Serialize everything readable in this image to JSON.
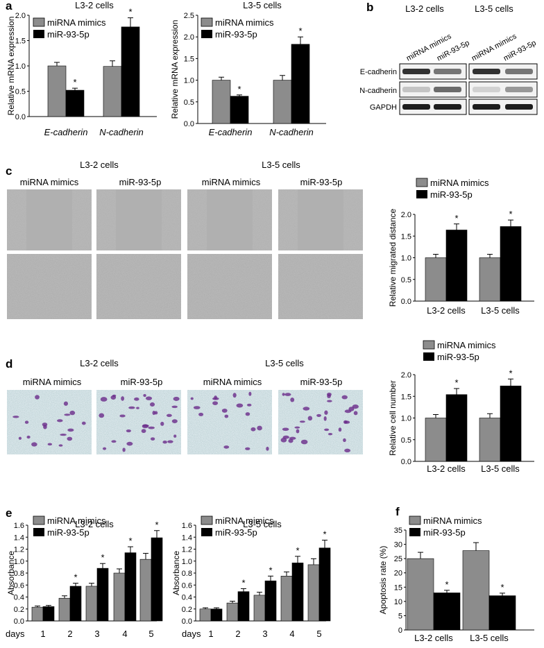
{
  "colors": {
    "mimic": "#8c8c8c",
    "mir": "#000000",
    "migration_bg": "#b8b8b8",
    "invasion_bg": "#d9e6ea",
    "stain": "#6a2a8a"
  },
  "legend": {
    "mimic": "miRNA mimics",
    "mir": "miR-93-5p"
  },
  "panel_a": {
    "label": "a"
  },
  "panel_b": {
    "label": "b",
    "groups": [
      "L3-2 cells",
      "L3-5 cells"
    ],
    "lanes": [
      "miRNA mimics",
      "miR-93-5p",
      "miRNA mimics",
      "miR-93-5p"
    ],
    "rows": [
      "E-cadherin",
      "N-cadherin",
      "GAPDH"
    ]
  },
  "panel_c": {
    "label": "c",
    "groups": [
      "L3-2 cells",
      "L3-5 cells"
    ],
    "columns": [
      "miRNA mimics",
      "miR-93-5p",
      "miRNA mimics",
      "miR-93-5p"
    ]
  },
  "panel_d": {
    "label": "d",
    "groups": [
      "L3-2 cells",
      "L3-5 cells"
    ],
    "columns": [
      "miRNA mimics",
      "miR-93-5p",
      "miRNA mimics",
      "miR-93-5p"
    ]
  },
  "panel_e": {
    "label": "e"
  },
  "panel_f": {
    "label": "f"
  },
  "chart_data": [
    {
      "id": "a1",
      "type": "bar",
      "title": "L3-2 cells",
      "ylabel": "Relative mRNA expression",
      "ylim": [
        0,
        2.0
      ],
      "yticks": [
        0,
        0.5,
        1.0,
        1.5,
        2.0
      ],
      "categories": [
        "E-cadherin",
        "N-cadherin"
      ],
      "series": [
        {
          "name": "miRNA mimics",
          "values": [
            1.0,
            0.99
          ],
          "errors": [
            0.07,
            0.11
          ]
        },
        {
          "name": "miR-93-5p",
          "values": [
            0.52,
            1.77
          ],
          "errors": [
            0.04,
            0.18
          ]
        }
      ],
      "significance": [
        "*",
        "*"
      ],
      "legend": "top-left"
    },
    {
      "id": "a2",
      "type": "bar",
      "title": "L3-5 cells",
      "ylabel": "Relative mRNA expression",
      "ylim": [
        0,
        2.5
      ],
      "yticks": [
        0,
        0.5,
        1.0,
        1.5,
        2.0,
        2.5
      ],
      "categories": [
        "E-cadherin",
        "N-cadherin"
      ],
      "series": [
        {
          "name": "miRNA mimics",
          "values": [
            1.0,
            1.0
          ],
          "errors": [
            0.07,
            0.11
          ]
        },
        {
          "name": "miR-93-5p",
          "values": [
            0.63,
            1.83
          ],
          "errors": [
            0.03,
            0.17
          ]
        }
      ],
      "significance": [
        "*",
        "*"
      ],
      "legend": "top-left"
    },
    {
      "id": "c1",
      "type": "bar",
      "title": "",
      "ylabel": "Relative migrated distance",
      "ylim": [
        0,
        2.0
      ],
      "yticks": [
        0,
        0.5,
        1.0,
        1.5,
        2.0
      ],
      "categories": [
        "L3-2 cells",
        "L3-5 cells"
      ],
      "series": [
        {
          "name": "miRNA mimics",
          "values": [
            1.0,
            1.0
          ],
          "errors": [
            0.08,
            0.08
          ]
        },
        {
          "name": "miR-93-5p",
          "values": [
            1.64,
            1.72
          ],
          "errors": [
            0.14,
            0.15
          ]
        }
      ],
      "significance": [
        "*",
        "*"
      ],
      "legend": "top"
    },
    {
      "id": "d1",
      "type": "bar",
      "title": "",
      "ylabel": "Relative cell number",
      "ylim": [
        0,
        2.0
      ],
      "yticks": [
        0,
        0.5,
        1.0,
        1.5,
        2.0
      ],
      "categories": [
        "L3-2 cells",
        "L3-5 cells"
      ],
      "series": [
        {
          "name": "miRNA mimics",
          "values": [
            1.0,
            1.0
          ],
          "errors": [
            0.08,
            0.1
          ]
        },
        {
          "name": "miR-93-5p",
          "values": [
            1.54,
            1.74
          ],
          "errors": [
            0.14,
            0.16
          ]
        }
      ],
      "significance": [
        "*",
        "*"
      ],
      "legend": "top"
    },
    {
      "id": "e1",
      "type": "bar",
      "title": "L3-2 cells",
      "ylabel": "Absorbance",
      "xlabel": "days",
      "ylim": [
        0,
        1.6
      ],
      "yticks": [
        0,
        0.2,
        0.4,
        0.6,
        0.8,
        1.0,
        1.2,
        1.4,
        1.6
      ],
      "categories": [
        "1",
        "2",
        "3",
        "4",
        "5"
      ],
      "series": [
        {
          "name": "miRNA mimics",
          "values": [
            0.23,
            0.38,
            0.58,
            0.8,
            1.03
          ],
          "errors": [
            0.02,
            0.04,
            0.05,
            0.07,
            0.1
          ]
        },
        {
          "name": "miR-93-5p",
          "values": [
            0.24,
            0.58,
            0.88,
            1.14,
            1.39
          ],
          "errors": [
            0.02,
            0.05,
            0.08,
            0.1,
            0.12
          ]
        }
      ],
      "significance": [
        "",
        "*",
        "*",
        "*",
        "*"
      ],
      "legend": "top-left"
    },
    {
      "id": "e2",
      "type": "bar",
      "title": "L3-5 cells",
      "ylabel": "Absorbance",
      "xlabel": "days",
      "ylim": [
        0,
        1.6
      ],
      "yticks": [
        0,
        0.2,
        0.4,
        0.6,
        0.8,
        1.0,
        1.2,
        1.4,
        1.6
      ],
      "categories": [
        "1",
        "2",
        "3",
        "4",
        "5"
      ],
      "series": [
        {
          "name": "miRNA mimics",
          "values": [
            0.2,
            0.3,
            0.43,
            0.75,
            0.94
          ],
          "errors": [
            0.02,
            0.03,
            0.05,
            0.07,
            0.1
          ]
        },
        {
          "name": "miR-93-5p",
          "values": [
            0.2,
            0.49,
            0.67,
            0.97,
            1.22
          ],
          "errors": [
            0.02,
            0.05,
            0.08,
            0.11,
            0.13
          ]
        }
      ],
      "significance": [
        "",
        "*",
        "*",
        "*",
        "*"
      ],
      "legend": "top-left"
    },
    {
      "id": "f1",
      "type": "bar",
      "title": "",
      "ylabel": "Apoptosis rate (%)",
      "ylim": [
        0,
        35
      ],
      "yticks": [
        0,
        5,
        10,
        15,
        20,
        25,
        30,
        35
      ],
      "categories": [
        "L3-2 cells",
        "L3-5 cells"
      ],
      "series": [
        {
          "name": "miRNA mimics",
          "values": [
            25,
            27.8
          ],
          "errors": [
            2.2,
            2.8
          ]
        },
        {
          "name": "miR-93-5p",
          "values": [
            13,
            12
          ],
          "errors": [
            0.9,
            0.9
          ]
        }
      ],
      "significance": [
        "*",
        "*"
      ],
      "legend": "top-left"
    }
  ]
}
